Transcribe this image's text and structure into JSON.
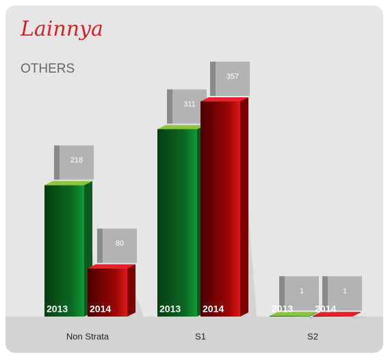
{
  "chart_data": {
    "type": "bar3d",
    "title": "Lainnya",
    "subtitle": "OTHERS",
    "categories": [
      "Non Strata",
      "S1",
      "S2"
    ],
    "series": [
      {
        "name": "2013",
        "color": "#0f7a2a",
        "values": [
          218,
          311,
          1
        ]
      },
      {
        "name": "2014",
        "color": "#b00a0a",
        "values": [
          80,
          357,
          1
        ]
      }
    ]
  }
}
